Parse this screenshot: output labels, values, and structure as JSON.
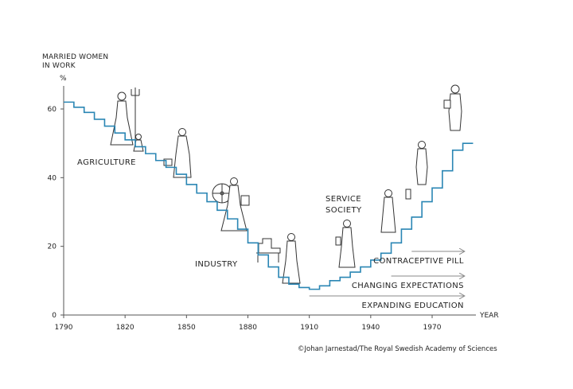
{
  "chart_data": {
    "type": "line",
    "step": true,
    "ylabel_lines": [
      "MARRIED WOMEN",
      "IN WORK"
    ],
    "yunit": "%",
    "xlabel": "YEAR",
    "xlim": [
      1790,
      1990
    ],
    "ylim": [
      0,
      70
    ],
    "xticks": [
      1790,
      1820,
      1850,
      1880,
      1910,
      1940,
      1970
    ],
    "yticks": [
      0,
      20,
      40,
      60
    ],
    "series": [
      {
        "name": "Married women in work",
        "color": "#2a86b4",
        "x": [
          1790,
          1795,
          1800,
          1805,
          1810,
          1815,
          1820,
          1825,
          1830,
          1835,
          1840,
          1845,
          1850,
          1855,
          1860,
          1865,
          1870,
          1875,
          1880,
          1885,
          1890,
          1895,
          1900,
          1905,
          1910,
          1915,
          1920,
          1925,
          1930,
          1935,
          1940,
          1945,
          1950,
          1955,
          1960,
          1965,
          1970,
          1975,
          1980,
          1985
        ],
        "y": [
          62,
          60.5,
          59,
          57,
          55,
          53,
          51,
          49,
          47,
          45,
          43,
          41,
          38,
          35.5,
          33,
          30.5,
          28,
          25,
          21,
          17.5,
          14,
          11,
          9,
          8,
          7.5,
          8.5,
          10,
          11,
          12.5,
          14,
          16,
          18,
          21,
          25,
          28.5,
          33,
          37,
          42,
          48,
          50
        ]
      }
    ],
    "annotations": [
      {
        "id": "agriculture",
        "text": "AGRICULTURE"
      },
      {
        "id": "industry",
        "text": "INDUSTRY"
      },
      {
        "id": "service",
        "text": "SERVICE SOCIETY",
        "lines": [
          "SERVICE",
          "SOCIETY"
        ]
      }
    ],
    "arrows": [
      {
        "text": "CONTRACEPTIVE PILL",
        "from_year": 1960,
        "to_year": 1982
      },
      {
        "text": "CHANGING EXPECTATIONS",
        "from_year": 1950,
        "to_year": 1982
      },
      {
        "text": "EXPANDING EDUCATION",
        "from_year": 1910,
        "to_year": 1982
      }
    ]
  },
  "credit": "©Johan Jarnestad/The Royal Swedish Academy of Sciences"
}
